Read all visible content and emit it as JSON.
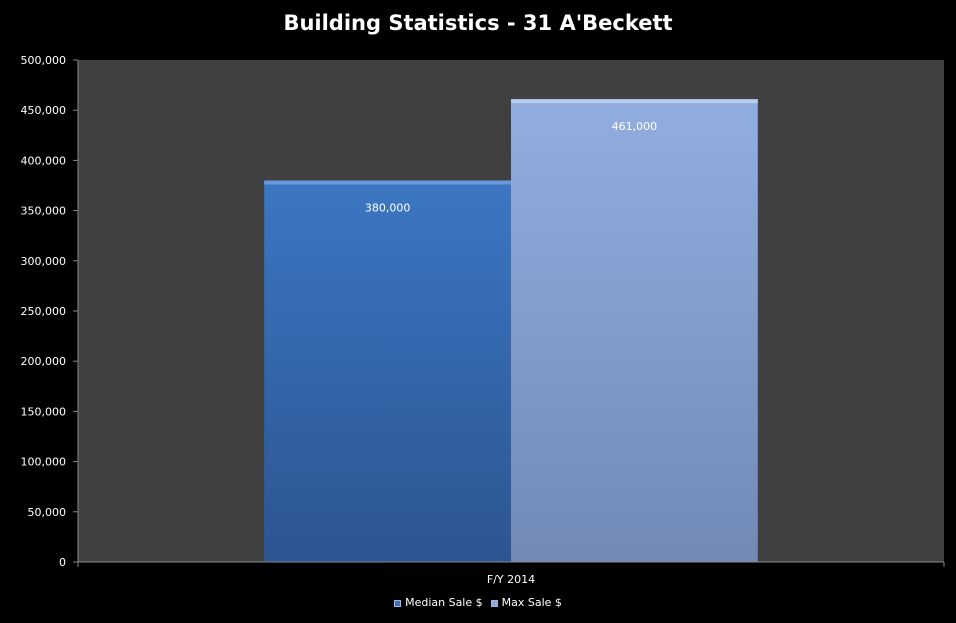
{
  "chart_data": {
    "type": "bar",
    "title": "Building Statistics - 31 A'Beckett",
    "categories": [
      "F/Y 2014"
    ],
    "series": [
      {
        "name": "Median Sale $",
        "values": [
          380000
        ],
        "color": "#3a6fb6"
      },
      {
        "name": "Max Sale $",
        "values": [
          461000
        ],
        "color": "#8ea8d8"
      }
    ],
    "data_labels": [
      "380,000",
      "461,000"
    ],
    "ylim": [
      0,
      500000
    ],
    "yticks": [
      0,
      50000,
      100000,
      150000,
      200000,
      250000,
      300000,
      350000,
      400000,
      450000,
      500000
    ],
    "ytick_labels": [
      "0",
      "50,000",
      "100,000",
      "150,000",
      "200,000",
      "250,000",
      "300,000",
      "350,000",
      "400,000",
      "450,000",
      "500,000"
    ],
    "grid": false,
    "legend_position": "bottom",
    "plot_background": "#404040",
    "page_background": "#000000"
  }
}
